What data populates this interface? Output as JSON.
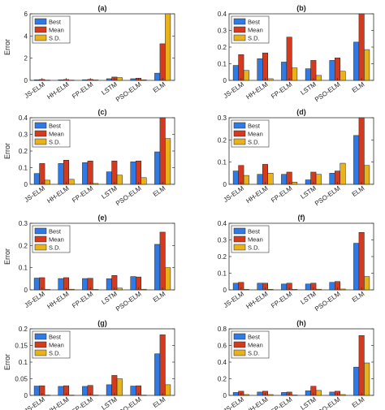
{
  "colors": {
    "Best": "#2f7ae5",
    "Mean": "#d43a1d",
    "S.D.": "#e8b21b",
    "axis": "#333333",
    "grid": "#e6e6e6"
  },
  "chart_data": [
    {
      "type": "bar",
      "title": "(a)",
      "ylabel": "Error",
      "ylim": [
        0,
        6
      ],
      "yticks": [
        0,
        2,
        4,
        6
      ],
      "categories": [
        "JS-ELM",
        "HH-ELM",
        "FP-ELM",
        "LSTM",
        "PSO-ELM",
        "ELM"
      ],
      "series": [
        {
          "name": "Best",
          "values": [
            0.05,
            0.05,
            0.06,
            0.15,
            0.15,
            0.65
          ]
        },
        {
          "name": "Mean",
          "values": [
            0.08,
            0.08,
            0.09,
            0.3,
            0.2,
            3.3
          ]
        },
        {
          "name": "S.D.",
          "values": [
            0.03,
            0.03,
            0.04,
            0.25,
            0.05,
            6.0
          ]
        }
      ],
      "legend": "top-left",
      "grid": false
    },
    {
      "type": "bar",
      "title": "(b)",
      "ylabel": "",
      "ylim": [
        0,
        0.4
      ],
      "yticks": [
        0,
        0.1,
        0.2,
        0.3,
        0.4
      ],
      "categories": [
        "JS-ELM",
        "HH-ELM",
        "FP-ELM",
        "LSTM",
        "PSO-ELM",
        "ELM"
      ],
      "series": [
        {
          "name": "Best",
          "values": [
            0.09,
            0.13,
            0.11,
            0.07,
            0.12,
            0.23
          ]
        },
        {
          "name": "Mean",
          "values": [
            0.155,
            0.165,
            0.26,
            0.12,
            0.135,
            0.4
          ]
        },
        {
          "name": "S.D.",
          "values": [
            0.06,
            0.01,
            0.075,
            0.03,
            0.055,
            0.185
          ]
        }
      ],
      "legend": "top-left",
      "grid": false
    },
    {
      "type": "bar",
      "title": "(c)",
      "ylabel": "Error",
      "ylim": [
        0,
        0.4
      ],
      "yticks": [
        0,
        0.1,
        0.2,
        0.3,
        0.4
      ],
      "categories": [
        "JS-ELM",
        "HH-ELM",
        "FP-ELM",
        "LSTM",
        "PSO-ELM",
        "ELM"
      ],
      "series": [
        {
          "name": "Best",
          "values": [
            0.065,
            0.125,
            0.13,
            0.075,
            0.135,
            0.195
          ]
        },
        {
          "name": "Mean",
          "values": [
            0.125,
            0.145,
            0.14,
            0.14,
            0.14,
            0.42
          ]
        },
        {
          "name": "S.D.",
          "values": [
            0.025,
            0.03,
            0.005,
            0.055,
            0.04,
            0.275
          ]
        }
      ],
      "legend": "top-left",
      "grid": false
    },
    {
      "type": "bar",
      "title": "(d)",
      "ylabel": "",
      "ylim": [
        0,
        0.3
      ],
      "yticks": [
        0,
        0.1,
        0.2,
        0.3
      ],
      "categories": [
        "JS-ELM",
        "HH-ELM",
        "FP-ELM",
        "LSTM",
        "PSO-ELM",
        "ELM"
      ],
      "series": [
        {
          "name": "Best",
          "values": [
            0.06,
            0.045,
            0.045,
            0.02,
            0.05,
            0.22
          ]
        },
        {
          "name": "Mean",
          "values": [
            0.085,
            0.09,
            0.055,
            0.055,
            0.06,
            0.31
          ]
        },
        {
          "name": "S.D.",
          "values": [
            0.04,
            0.05,
            0.01,
            0.045,
            0.095,
            0.085
          ]
        }
      ],
      "legend": "top-left",
      "grid": false
    },
    {
      "type": "bar",
      "title": "(e)",
      "ylabel": "Error",
      "ylim": [
        0,
        0.3
      ],
      "yticks": [
        0,
        0.1,
        0.2,
        0.3
      ],
      "categories": [
        "JS-ELM",
        "HH-ELM",
        "FP-ELM",
        "LSTM",
        "PSO-ELM",
        "ELM"
      ],
      "series": [
        {
          "name": "Best",
          "values": [
            0.053,
            0.051,
            0.051,
            0.05,
            0.06,
            0.205
          ]
        },
        {
          "name": "Mean",
          "values": [
            0.055,
            0.055,
            0.052,
            0.065,
            0.058,
            0.26
          ]
        },
        {
          "name": "S.D.",
          "values": [
            0.002,
            0.003,
            0.002,
            0.008,
            0.003,
            0.1
          ]
        }
      ],
      "legend": "top-left",
      "grid": false
    },
    {
      "type": "bar",
      "title": "(f)",
      "ylabel": "",
      "ylim": [
        0,
        0.4
      ],
      "yticks": [
        0,
        0.1,
        0.2,
        0.3,
        0.4
      ],
      "categories": [
        "JS-ELM",
        "HH-ELM",
        "FP-ELM",
        "LSTM",
        "PSO-ELM",
        "ELM"
      ],
      "series": [
        {
          "name": "Best",
          "values": [
            0.04,
            0.04,
            0.035,
            0.035,
            0.045,
            0.28
          ]
        },
        {
          "name": "Mean",
          "values": [
            0.045,
            0.04,
            0.04,
            0.04,
            0.05,
            0.345
          ]
        },
        {
          "name": "S.D.",
          "values": [
            0.003,
            0.003,
            0.003,
            0.004,
            0.005,
            0.08
          ]
        }
      ],
      "legend": "top-left",
      "grid": false
    },
    {
      "type": "bar",
      "title": "(g)",
      "ylabel": "Error",
      "ylim": [
        0,
        0.2
      ],
      "yticks": [
        0,
        0.05,
        0.1,
        0.15,
        0.2
      ],
      "categories": [
        "JS-ELM",
        "HH-ELM",
        "FP-ELM",
        "LSTM",
        "PSO-ELM",
        "ELM"
      ],
      "series": [
        {
          "name": "Best",
          "values": [
            0.028,
            0.027,
            0.027,
            0.032,
            0.028,
            0.125
          ]
        },
        {
          "name": "Mean",
          "values": [
            0.029,
            0.029,
            0.03,
            0.06,
            0.029,
            0.182
          ]
        },
        {
          "name": "S.D.",
          "values": [
            0.001,
            0.001,
            0.001,
            0.05,
            0.001,
            0.032
          ]
        }
      ],
      "legend": "top-left",
      "grid": false
    },
    {
      "type": "bar",
      "title": "(h)",
      "ylabel": "",
      "ylim": [
        0,
        0.8
      ],
      "yticks": [
        0,
        0.2,
        0.4,
        0.6,
        0.8
      ],
      "categories": [
        "JS-ELM",
        "HH-ELM",
        "FP-ELM",
        "LSTM",
        "PSO-ELM",
        "ELM"
      ],
      "series": [
        {
          "name": "Best",
          "values": [
            0.035,
            0.04,
            0.035,
            0.055,
            0.04,
            0.34
          ]
        },
        {
          "name": "Mean",
          "values": [
            0.05,
            0.05,
            0.04,
            0.11,
            0.05,
            0.72
          ]
        },
        {
          "name": "S.D.",
          "values": [
            0.01,
            0.01,
            0.005,
            0.06,
            0.01,
            0.39
          ]
        }
      ],
      "legend": "top-left",
      "grid": false
    }
  ]
}
